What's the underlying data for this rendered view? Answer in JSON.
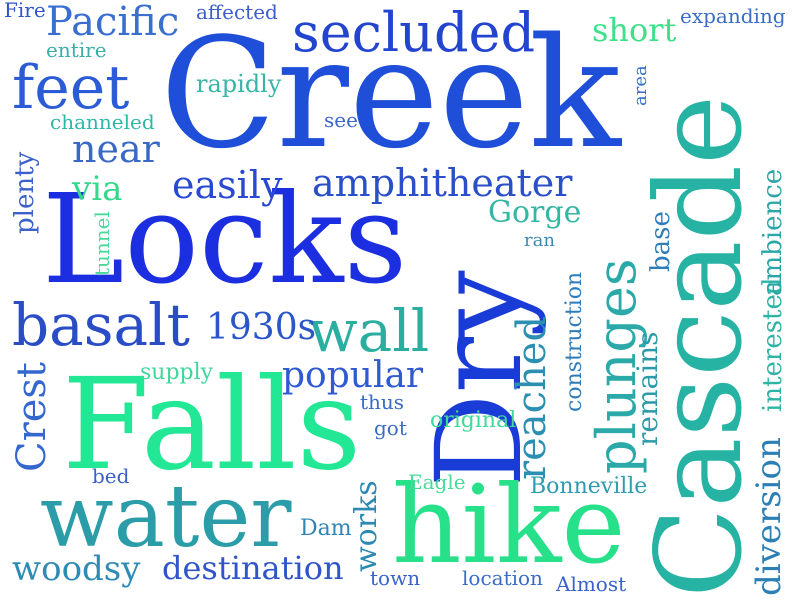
{
  "words": [
    {
      "text": "Creek",
      "color": "#1f4fd8"
    },
    {
      "text": "Locks",
      "color": "#1b2fe0"
    },
    {
      "text": "Falls",
      "color": "#22e896"
    },
    {
      "text": "Cascade",
      "color": "#26b3a3"
    },
    {
      "text": "Dry",
      "color": "#1a3cd6"
    },
    {
      "text": "hike",
      "color": "#26e08a"
    },
    {
      "text": "water",
      "color": "#2b9da8"
    },
    {
      "text": "secluded",
      "color": "#2344cf"
    },
    {
      "text": "Pacific",
      "color": "#3a6fd0"
    },
    {
      "text": "feet",
      "color": "#2c5bd6"
    },
    {
      "text": "amphitheater",
      "color": "#2a4fc9"
    },
    {
      "text": "plunges",
      "color": "#2aa9a8"
    },
    {
      "text": "basalt",
      "color": "#2a4dc6"
    },
    {
      "text": "wall",
      "color": "#2aaea0"
    },
    {
      "text": "easily",
      "color": "#2a49d2"
    },
    {
      "text": "Crest",
      "color": "#3568cf"
    },
    {
      "text": "1930s",
      "color": "#2a56c8"
    },
    {
      "text": "popular",
      "color": "#2f5ad0"
    },
    {
      "text": "near",
      "color": "#3a68c6"
    },
    {
      "text": "reached",
      "color": "#2b8fb2"
    },
    {
      "text": "diversion",
      "color": "#2b7fb5"
    },
    {
      "text": "woodsy",
      "color": "#2f8bb3"
    },
    {
      "text": "destination",
      "color": "#2f55c9"
    },
    {
      "text": "remains",
      "color": "#2b9aa9"
    },
    {
      "text": "interested",
      "color": "#2fb3a4"
    },
    {
      "text": "ambience",
      "color": "#2aa6a6"
    },
    {
      "text": "Gorge",
      "color": "#33b6a4"
    },
    {
      "text": "via",
      "color": "#34d88c"
    },
    {
      "text": "short",
      "color": "#3fe08a"
    },
    {
      "text": "works",
      "color": "#2c89b0"
    },
    {
      "text": "construction",
      "color": "#2f7cb8"
    },
    {
      "text": "base",
      "color": "#2f7db7"
    },
    {
      "text": "Bonneville",
      "color": "#2f9bb0"
    },
    {
      "text": "original",
      "color": "#3fd99a"
    },
    {
      "text": "Dam",
      "color": "#2f86b4"
    },
    {
      "text": "expanding",
      "color": "#3a6cc8"
    },
    {
      "text": "affected",
      "color": "#3a5fcb"
    },
    {
      "text": "Fire",
      "color": "#2c56c8"
    },
    {
      "text": "entire",
      "color": "#3aaea6"
    },
    {
      "text": "rapidly",
      "color": "#39b5a6"
    },
    {
      "text": "channeled",
      "color": "#2fb8a6"
    },
    {
      "text": "see",
      "color": "#3a66c8"
    },
    {
      "text": "plenty",
      "color": "#3a62c8"
    },
    {
      "text": "tunnel",
      "color": "#48d99a"
    },
    {
      "text": "supply",
      "color": "#40d89a"
    },
    {
      "text": "thus",
      "color": "#3a6cc6"
    },
    {
      "text": "got",
      "color": "#3a6cc6"
    },
    {
      "text": "bed",
      "color": "#3a62c8"
    },
    {
      "text": "Eagle",
      "color": "#4ad99a"
    },
    {
      "text": "town",
      "color": "#3a62c8"
    },
    {
      "text": "location",
      "color": "#3a6cc6"
    },
    {
      "text": "Almost",
      "color": "#3a62c8"
    },
    {
      "text": "area",
      "color": "#3a6ec8"
    },
    {
      "text": "ran",
      "color": "#3a8ab8"
    }
  ]
}
